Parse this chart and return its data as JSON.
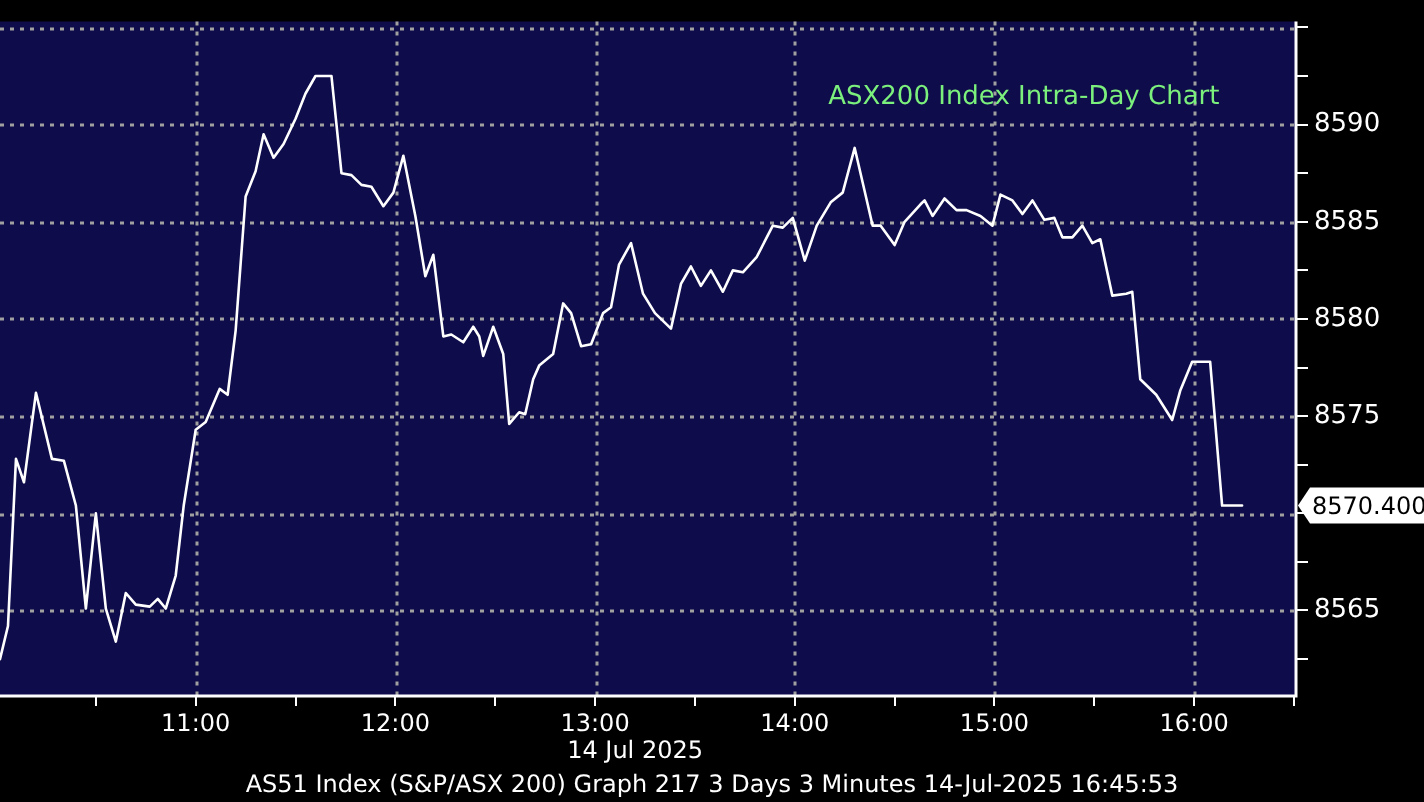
{
  "chart_data": {
    "type": "line",
    "title": "ASX200 Index Intra-Day Chart",
    "xlabel": "14 Jul 2025",
    "annotations": [
      "AS51 Index (S&P/ASX 200) Graph 217 3 Days 3 Minutes 14-Jul-2025 16:45:53",
      {
        "text": "8570.400",
        "x": 16.24,
        "y": 8570.4
      }
    ],
    "x": [
      10.02,
      10.06,
      10.1,
      10.14,
      10.2,
      10.28,
      10.34,
      10.4,
      10.45,
      10.5,
      10.55,
      10.6,
      10.65,
      10.7,
      10.77,
      10.81,
      10.85,
      10.9,
      10.94,
      11.0,
      11.05,
      11.12,
      11.16,
      11.2,
      11.25,
      11.3,
      11.34,
      11.39,
      11.44,
      11.5,
      11.55,
      11.6,
      11.68,
      11.73,
      11.78,
      11.83,
      11.88,
      11.94,
      11.99,
      12.04,
      12.1,
      12.15,
      12.19,
      12.24,
      12.28,
      12.34,
      12.39,
      12.42,
      12.44,
      12.49,
      12.54,
      12.57,
      12.62,
      12.65,
      12.69,
      12.72,
      12.79,
      12.84,
      12.88,
      12.93,
      12.98,
      13.04,
      13.08,
      13.12,
      13.18,
      13.24,
      13.3,
      13.38,
      13.43,
      13.48,
      13.53,
      13.58,
      13.64,
      13.69,
      13.74,
      13.81,
      13.89,
      13.94,
      13.99,
      14.05,
      14.11,
      14.18,
      14.24,
      14.3,
      14.39,
      14.43,
      14.5,
      14.55,
      14.63,
      14.65,
      14.69,
      14.75,
      14.81,
      14.86,
      14.93,
      14.99,
      15.03,
      15.09,
      15.14,
      15.19,
      15.25,
      15.3,
      15.34,
      15.39,
      15.44,
      15.49,
      15.53,
      15.59,
      15.66,
      15.69,
      15.73,
      15.81,
      15.89,
      15.93,
      15.99,
      16.08,
      16.14,
      16.24
    ],
    "series": [
      {
        "color": "#ffffff",
        "values": [
          8562.5,
          8564.2,
          8572.8,
          8571.6,
          8576.2,
          8572.8,
          8572.7,
          8570.4,
          8565.1,
          8570,
          8565.1,
          8563.4,
          8565.9,
          8565.3,
          8565.2,
          8565.6,
          8565.1,
          8566.8,
          8570.4,
          8574.3,
          8574.7,
          8576.4,
          8576.1,
          8579.4,
          8586.3,
          8587.6,
          8589.5,
          8588.3,
          8589,
          8590.3,
          8591.6,
          8592.5,
          8592.5,
          8587.5,
          8587.4,
          8586.9,
          8586.8,
          8585.8,
          8586.5,
          8588.4,
          8585.3,
          8582.2,
          8583.3,
          8579.1,
          8579.2,
          8578.8,
          8579.6,
          8579.1,
          8578.1,
          8579.6,
          8578.2,
          8574.6,
          8575.2,
          8575.1,
          8576.9,
          8577.6,
          8578.2,
          8580.8,
          8580.3,
          8578.6,
          8578.7,
          8580.3,
          8580.6,
          8582.8,
          8583.9,
          8581.3,
          8580.3,
          8579.5,
          8581.8,
          8582.7,
          8581.7,
          8582.5,
          8581.4,
          8582.5,
          8582.4,
          8583.2,
          8584.8,
          8584.7,
          8585.2,
          8583,
          8584.8,
          8586,
          8586.5,
          8588.8,
          8584.8,
          8584.8,
          8583.8,
          8585,
          8585.9,
          8586.1,
          8585.3,
          8586.2,
          8585.6,
          8585.6,
          8585.3,
          8584.8,
          8586.4,
          8586.1,
          8585.4,
          8586.1,
          8585.1,
          8585.2,
          8584.2,
          8584.2,
          8584.8,
          8583.9,
          8584.1,
          8581.2,
          8581.3,
          8581.4,
          8576.9,
          8576.1,
          8574.8,
          8576.3,
          8577.8,
          8577.8,
          8570.4,
          8570.4
        ]
      }
    ],
    "xlim": [
      10.02,
      16.51
    ],
    "xticks": [
      {
        "value": 10.5,
        "label": null
      },
      {
        "value": 11,
        "label": "11:00"
      },
      {
        "value": 11.5,
        "label": null
      },
      {
        "value": 12,
        "label": "12:00"
      },
      {
        "value": 12.5,
        "label": null
      },
      {
        "value": 13,
        "label": "13:00"
      },
      {
        "value": 13.5,
        "label": null
      },
      {
        "value": 14,
        "label": "14:00"
      },
      {
        "value": 14.5,
        "label": null
      },
      {
        "value": 15,
        "label": "15:00"
      },
      {
        "value": 15.5,
        "label": null
      },
      {
        "value": 16,
        "label": "16:00"
      },
      {
        "value": 16.5,
        "label": null
      }
    ],
    "ylim": [
      8560.6,
      8595.3
    ],
    "yticks": [
      {
        "value": 8562.5,
        "label": null
      },
      8565,
      {
        "value": 8567.5,
        "label": null
      },
      {
        "value": 8570,
        "label": null
      },
      {
        "value": 8572.5,
        "label": null
      },
      8575,
      {
        "value": 8577.5,
        "label": null
      },
      8580,
      {
        "value": 8582.5,
        "label": null
      },
      8585,
      {
        "value": 8587.5,
        "label": null
      },
      8590,
      {
        "value": 8592.5,
        "label": null
      },
      {
        "value": 8595,
        "label": null
      }
    ],
    "grid": true,
    "legend": false,
    "marker": "none",
    "line_style": "solid"
  }
}
